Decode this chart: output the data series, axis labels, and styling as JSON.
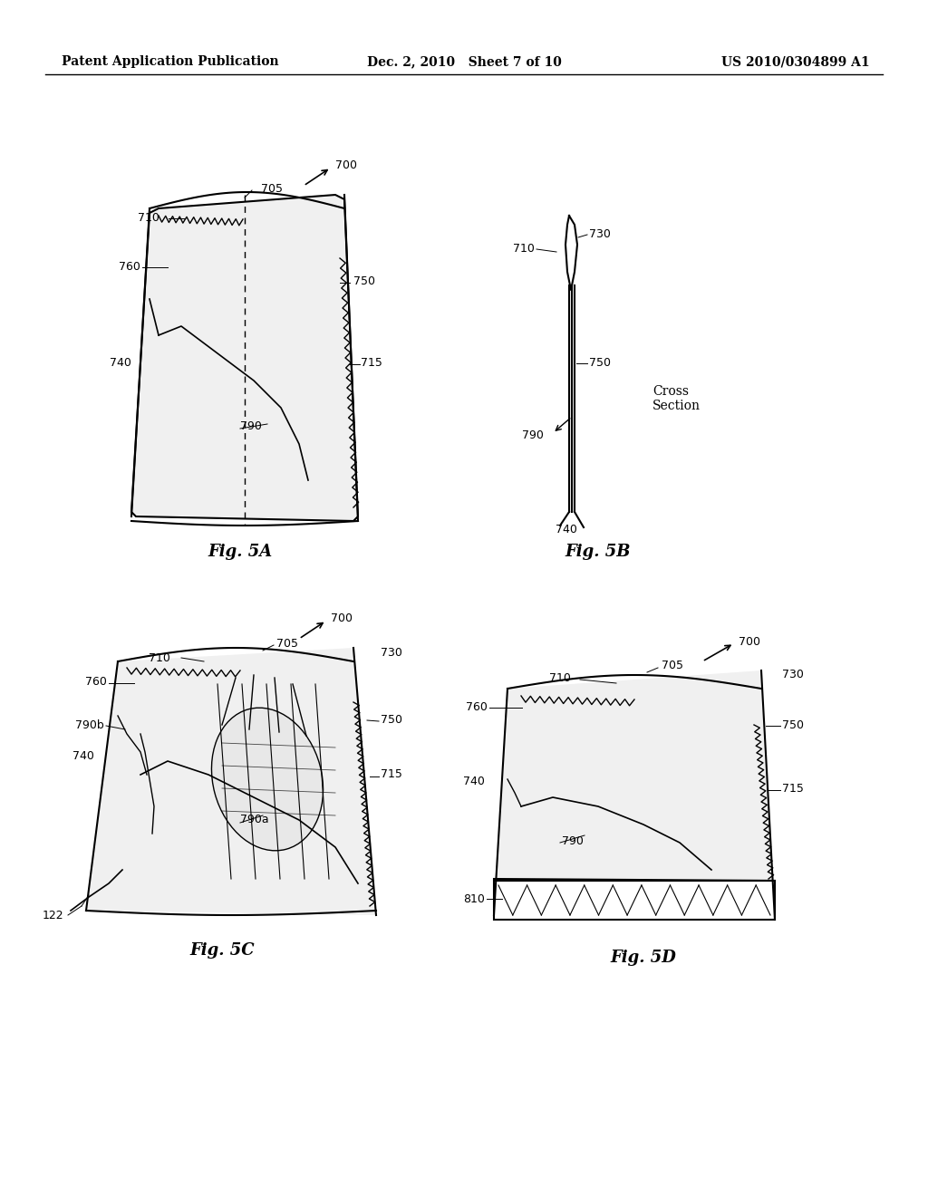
{
  "title_left": "Patent Application Publication",
  "title_mid": "Dec. 2, 2010   Sheet 7 of 10",
  "title_right": "US 2010/0304899 A1",
  "fig5a_label": "Fig. 5A",
  "fig5b_label": "Fig. 5B",
  "fig5c_label": "Fig. 5C",
  "fig5d_label": "Fig. 5D",
  "cross_section_label": "Cross\nSection",
  "bg_color": "#ffffff",
  "line_color": "#000000",
  "ref_nums": {
    "700": "700",
    "705": "705",
    "710": "710",
    "715": "715",
    "730": "730",
    "740": "740",
    "750": "750",
    "760": "760",
    "790": "790",
    "790a": "790a",
    "790b": "790b",
    "810": "810",
    "122": "122"
  }
}
